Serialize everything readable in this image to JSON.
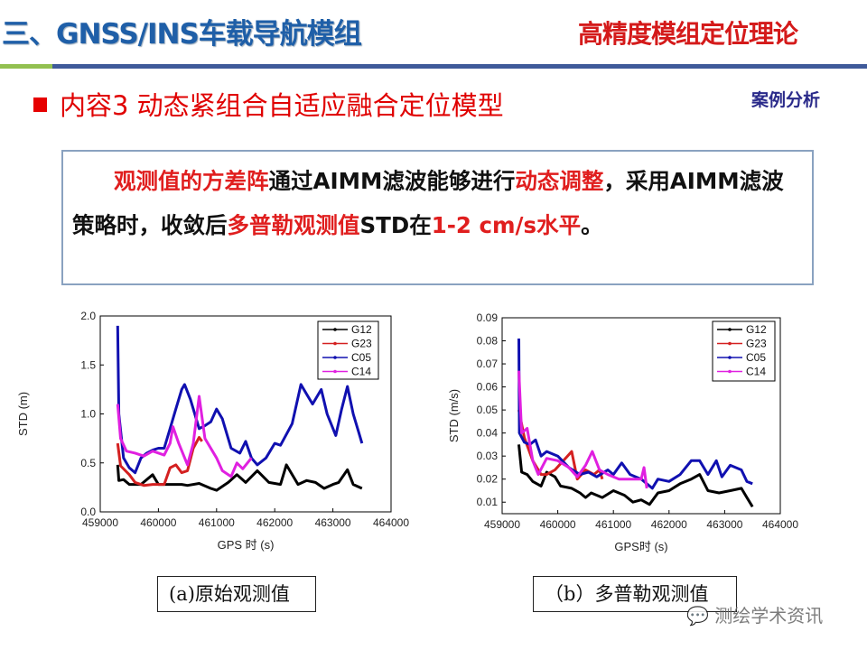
{
  "header": {
    "title": "三、GNSS/INS车载导航模组",
    "topic": "高精度模组定位理论",
    "colors": {
      "title": "#1f5fa8",
      "topic": "#d41a1a",
      "divider_left": "#92c050",
      "divider_right": "#3f5a9a"
    }
  },
  "section": {
    "bullet_icon": "red-square",
    "subtitle": "内容3  动态紧组合自适应融合定位模型",
    "tag": "案例分析"
  },
  "textbox": {
    "segments": [
      {
        "text": "观测值的方差阵",
        "red": true
      },
      {
        "text": "通过AIMM滤波能够进行",
        "red": false
      },
      {
        "text": "动态调整",
        "red": true
      },
      {
        "text": "，采用AIMM滤波策略时，收敛后",
        "red": false
      },
      {
        "text": "多普勒观测值",
        "red": true
      },
      {
        "text": "STD在",
        "red": false
      },
      {
        "text": "1-2 cm/s水平",
        "red": true
      },
      {
        "text": "。",
        "red": false
      }
    ]
  },
  "captions": {
    "a": "(a)原始观测值",
    "b": "（b）多普勒观测值"
  },
  "watermark": "测绘学术资讯",
  "chart_data": [
    {
      "type": "line",
      "xlabel": "GPS 时 (s)",
      "ylabel": "STD (m)",
      "xlim": [
        459000,
        464000
      ],
      "ylim": [
        0,
        2.0
      ],
      "xticks": [
        "459000",
        "460000",
        "461000",
        "462000",
        "463000",
        "464000"
      ],
      "yticks": [
        "0.0",
        "0.5",
        "1.0",
        "1.5",
        "2.0"
      ],
      "ytick_values": [
        0,
        0.5,
        1.0,
        1.5,
        2.0
      ],
      "legend": "top-right",
      "series": [
        {
          "name": "G12",
          "color": "#000000",
          "points": [
            [
              459300,
              0.48
            ],
            [
              459320,
              0.32
            ],
            [
              459400,
              0.33
            ],
            [
              459500,
              0.28
            ],
            [
              459700,
              0.28
            ],
            [
              459900,
              0.38
            ],
            [
              460000,
              0.28
            ],
            [
              460200,
              0.28
            ],
            [
              460400,
              0.28
            ],
            [
              460500,
              0.27
            ],
            [
              460700,
              0.29
            ],
            [
              460900,
              0.24
            ],
            [
              461000,
              0.22
            ],
            [
              461200,
              0.3
            ],
            [
              461350,
              0.38
            ],
            [
              461500,
              0.3
            ],
            [
              461700,
              0.42
            ],
            [
              461900,
              0.3
            ],
            [
              462100,
              0.28
            ],
            [
              462200,
              0.48
            ],
            [
              462400,
              0.28
            ],
            [
              462550,
              0.32
            ],
            [
              462700,
              0.3
            ],
            [
              462850,
              0.24
            ],
            [
              463000,
              0.28
            ],
            [
              463100,
              0.3
            ],
            [
              463250,
              0.43
            ],
            [
              463350,
              0.28
            ],
            [
              463500,
              0.24
            ]
          ]
        },
        {
          "name": "G23",
          "color": "#d42020",
          "points": [
            [
              459300,
              0.7
            ],
            [
              459350,
              0.47
            ],
            [
              459500,
              0.38
            ],
            [
              459600,
              0.3
            ],
            [
              459750,
              0.27
            ],
            [
              459900,
              0.28
            ],
            [
              460100,
              0.28
            ],
            [
              460200,
              0.45
            ],
            [
              460300,
              0.48
            ],
            [
              460400,
              0.4
            ],
            [
              460500,
              0.42
            ],
            [
              460600,
              0.65
            ],
            [
              460700,
              0.76
            ],
            [
              460750,
              0.72
            ]
          ]
        },
        {
          "name": "C05",
          "color": "#1010b0",
          "points": [
            [
              459300,
              1.9
            ],
            [
              459320,
              1.0
            ],
            [
              459400,
              0.55
            ],
            [
              459500,
              0.45
            ],
            [
              459600,
              0.4
            ],
            [
              459700,
              0.55
            ],
            [
              459800,
              0.6
            ],
            [
              459900,
              0.63
            ],
            [
              460000,
              0.65
            ],
            [
              460100,
              0.65
            ],
            [
              460200,
              0.85
            ],
            [
              460300,
              1.05
            ],
            [
              460400,
              1.25
            ],
            [
              460450,
              1.3
            ],
            [
              460550,
              1.15
            ],
            [
              460700,
              0.85
            ],
            [
              460800,
              0.88
            ],
            [
              460900,
              0.92
            ],
            [
              461000,
              1.05
            ],
            [
              461100,
              0.95
            ],
            [
              461250,
              0.65
            ],
            [
              461400,
              0.6
            ],
            [
              461500,
              0.72
            ],
            [
              461600,
              0.55
            ],
            [
              461700,
              0.48
            ],
            [
              461850,
              0.55
            ],
            [
              462000,
              0.7
            ],
            [
              462100,
              0.68
            ],
            [
              462300,
              0.9
            ],
            [
              462450,
              1.3
            ],
            [
              462550,
              1.2
            ],
            [
              462650,
              1.1
            ],
            [
              462800,
              1.25
            ],
            [
              462900,
              1.0
            ],
            [
              463050,
              0.78
            ],
            [
              463150,
              1.05
            ],
            [
              463250,
              1.28
            ],
            [
              463350,
              1.0
            ],
            [
              463450,
              0.8
            ],
            [
              463500,
              0.7
            ]
          ]
        },
        {
          "name": "C14",
          "color": "#e020e0",
          "points": [
            [
              459300,
              1.1
            ],
            [
              459350,
              0.75
            ],
            [
              459450,
              0.62
            ],
            [
              459600,
              0.6
            ],
            [
              459750,
              0.57
            ],
            [
              459900,
              0.62
            ],
            [
              460100,
              0.58
            ],
            [
              460200,
              0.7
            ],
            [
              460250,
              0.87
            ],
            [
              460350,
              0.7
            ],
            [
              460500,
              0.48
            ],
            [
              460600,
              0.7
            ],
            [
              460700,
              1.18
            ],
            [
              460800,
              0.75
            ],
            [
              461000,
              0.55
            ],
            [
              461100,
              0.42
            ],
            [
              461250,
              0.36
            ],
            [
              461350,
              0.5
            ],
            [
              461450,
              0.44
            ],
            [
              461600,
              0.55
            ]
          ]
        }
      ]
    },
    {
      "type": "line",
      "xlabel": "GPS时 (s)",
      "ylabel": "STD (m/s)",
      "xlim": [
        459000,
        464000
      ],
      "ylim": [
        0.005,
        0.09
      ],
      "xticks": [
        "459000",
        "460000",
        "461000",
        "462000",
        "463000",
        "464000"
      ],
      "yticks": [
        "0.01",
        "0.02",
        "0.03",
        "0.04",
        "0.05",
        "0.06",
        "0.07",
        "0.08",
        "0.09"
      ],
      "ytick_values": [
        0.01,
        0.02,
        0.03,
        0.04,
        0.05,
        0.06,
        0.07,
        0.08,
        0.09
      ],
      "legend": "top-right",
      "series": [
        {
          "name": "G12",
          "color": "#000000",
          "points": [
            [
              459300,
              0.035
            ],
            [
              459350,
              0.023
            ],
            [
              459450,
              0.022
            ],
            [
              459550,
              0.019
            ],
            [
              459700,
              0.017
            ],
            [
              459800,
              0.023
            ],
            [
              459950,
              0.021
            ],
            [
              460050,
              0.017
            ],
            [
              460250,
              0.016
            ],
            [
              460400,
              0.014
            ],
            [
              460500,
              0.012
            ],
            [
              460600,
              0.014
            ],
            [
              460800,
              0.012
            ],
            [
              461000,
              0.015
            ],
            [
              461200,
              0.013
            ],
            [
              461350,
              0.01
            ],
            [
              461500,
              0.011
            ],
            [
              461650,
              0.009
            ],
            [
              461800,
              0.014
            ],
            [
              462000,
              0.015
            ],
            [
              462200,
              0.018
            ],
            [
              462400,
              0.02
            ],
            [
              462550,
              0.022
            ],
            [
              462700,
              0.015
            ],
            [
              462900,
              0.014
            ],
            [
              463100,
              0.015
            ],
            [
              463300,
              0.016
            ],
            [
              463400,
              0.012
            ],
            [
              463500,
              0.008
            ]
          ]
        },
        {
          "name": "G23",
          "color": "#d42020",
          "points": [
            [
              459300,
              0.05
            ],
            [
              459400,
              0.038
            ],
            [
              459550,
              0.028
            ],
            [
              459700,
              0.022
            ],
            [
              459800,
              0.022
            ],
            [
              459950,
              0.024
            ],
            [
              460100,
              0.028
            ],
            [
              460250,
              0.032
            ],
            [
              460350,
              0.02
            ],
            [
              460500,
              0.024
            ],
            [
              460650,
              0.022
            ],
            [
              460750,
              0.024
            ],
            [
              460800,
              0.02
            ]
          ]
        },
        {
          "name": "C05",
          "color": "#1010b0",
          "points": [
            [
              459300,
              0.081
            ],
            [
              459310,
              0.04
            ],
            [
              459400,
              0.036
            ],
            [
              459500,
              0.035
            ],
            [
              459600,
              0.037
            ],
            [
              459700,
              0.03
            ],
            [
              459800,
              0.032
            ],
            [
              460000,
              0.03
            ],
            [
              460200,
              0.025
            ],
            [
              460400,
              0.022
            ],
            [
              460550,
              0.023
            ],
            [
              460700,
              0.021
            ],
            [
              460900,
              0.024
            ],
            [
              461000,
              0.022
            ],
            [
              461150,
              0.027
            ],
            [
              461300,
              0.022
            ],
            [
              461500,
              0.02
            ],
            [
              461700,
              0.016
            ],
            [
              461800,
              0.02
            ],
            [
              462000,
              0.019
            ],
            [
              462200,
              0.022
            ],
            [
              462400,
              0.028
            ],
            [
              462550,
              0.028
            ],
            [
              462700,
              0.022
            ],
            [
              462850,
              0.028
            ],
            [
              462950,
              0.021
            ],
            [
              463100,
              0.026
            ],
            [
              463300,
              0.024
            ],
            [
              463400,
              0.019
            ],
            [
              463500,
              0.018
            ]
          ]
        },
        {
          "name": "C14",
          "color": "#e020e0",
          "points": [
            [
              459300,
              0.067
            ],
            [
              459350,
              0.04
            ],
            [
              459450,
              0.042
            ],
            [
              459550,
              0.028
            ],
            [
              459650,
              0.022
            ],
            [
              459800,
              0.029
            ],
            [
              460000,
              0.028
            ],
            [
              460200,
              0.025
            ],
            [
              460350,
              0.021
            ],
            [
              460500,
              0.026
            ],
            [
              460620,
              0.032
            ],
            [
              460750,
              0.024
            ],
            [
              460900,
              0.022
            ],
            [
              461100,
              0.02
            ],
            [
              461300,
              0.02
            ],
            [
              461500,
              0.02
            ],
            [
              461550,
              0.025
            ],
            [
              461600,
              0.016
            ]
          ]
        }
      ]
    }
  ]
}
